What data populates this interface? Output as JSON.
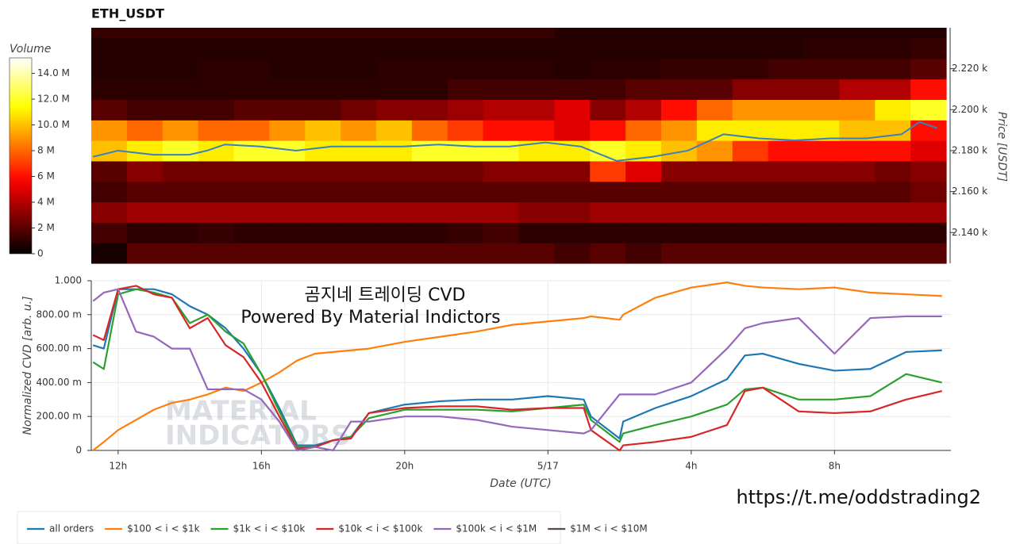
{
  "chart_data": [
    {
      "type": "heatmap",
      "title": "ETH_USDT",
      "colormap": "hot",
      "x": [
        11.75,
        12.75,
        13.75,
        14.75,
        15.75,
        16.75,
        17.75,
        18.75,
        19.75,
        20.75,
        21.75,
        22.75,
        23.75,
        24.75,
        25.75,
        26.75,
        27.75,
        28.75,
        29.75,
        30.75,
        31.75,
        32.75,
        33.75,
        34.75
      ],
      "y": [
        2130,
        2140,
        2150,
        2160,
        2170,
        2180,
        2190,
        2200,
        2210,
        2220,
        2230,
        2240
      ],
      "values": [
        [
          0.5,
          2,
          2,
          2,
          2,
          2,
          2,
          2,
          2,
          2,
          2,
          2,
          2,
          1.5,
          2,
          1.5,
          2,
          2,
          2,
          2,
          2,
          2,
          2,
          2
        ],
        [
          1.5,
          1,
          1,
          1.2,
          1,
          1,
          1,
          1,
          1,
          1,
          1.2,
          1.5,
          1,
          1,
          1,
          1,
          1,
          1,
          1,
          1,
          1,
          1,
          1,
          1
        ],
        [
          3,
          3.5,
          3.5,
          3.5,
          3.5,
          3.5,
          3.5,
          3.5,
          3.5,
          3.5,
          3.5,
          3.5,
          3,
          3,
          3.5,
          3.5,
          3.5,
          3.5,
          3.5,
          3.5,
          3.5,
          3.5,
          3.5,
          3.5
        ],
        [
          1.5,
          2,
          2,
          2,
          2,
          2,
          2,
          2,
          2,
          2,
          2,
          2,
          2,
          2,
          2,
          2,
          2,
          2,
          2,
          2,
          2,
          2,
          2,
          2.5
        ],
        [
          2,
          3,
          2.5,
          2.5,
          2.5,
          2.5,
          2.5,
          2.5,
          2.5,
          2.5,
          2.5,
          3,
          3,
          3,
          7,
          5,
          3,
          3,
          3,
          3,
          3,
          3,
          2.5,
          3
        ],
        [
          10,
          11,
          12,
          11,
          12,
          12,
          11,
          11,
          11,
          12,
          12,
          12,
          11,
          11,
          12,
          11,
          10,
          9,
          7,
          6,
          6,
          6,
          6,
          5
        ],
        [
          9,
          8,
          9,
          8,
          8,
          9,
          10,
          9,
          10,
          8,
          7,
          6,
          6,
          5,
          6,
          8,
          9,
          11,
          11,
          11,
          11,
          10,
          10,
          6
        ],
        [
          2,
          1.5,
          1.5,
          1.5,
          2,
          2,
          2,
          2.5,
          3,
          3,
          3.5,
          4,
          4,
          5,
          3,
          4,
          6,
          8,
          9,
          9,
          9,
          9,
          11,
          12
        ],
        [
          1,
          1,
          1,
          1,
          1,
          1,
          1,
          1,
          1,
          1,
          1.5,
          1.5,
          1.5,
          1.5,
          1.5,
          2,
          2,
          2,
          3,
          3,
          3,
          4,
          4,
          6
        ],
        [
          0.8,
          0.8,
          0.8,
          1,
          1,
          0.8,
          0.8,
          0.8,
          1,
          1,
          1,
          1,
          1,
          0.8,
          1,
          1,
          1.2,
          1.2,
          1.2,
          1.5,
          1.5,
          1.5,
          1.5,
          2
        ],
        [
          0.8,
          0.8,
          0.8,
          0.8,
          0.8,
          0.8,
          0.8,
          0.8,
          0.8,
          0.8,
          0.8,
          0.8,
          0.8,
          0.8,
          0.8,
          0.8,
          0.8,
          0.8,
          0.8,
          0.8,
          1,
          1,
          1,
          1.2
        ],
        [
          1.2,
          1.2,
          1.2,
          1.2,
          1.2,
          1.2,
          1.2,
          1.2,
          1.2,
          1.2,
          1.2,
          1.2,
          1.2,
          0.8,
          0.8,
          0.8,
          0.8,
          0.8,
          0.8,
          0.8,
          0.8,
          0.8,
          0.8,
          0.8
        ]
      ],
      "xlim": [
        11.25,
        35.25
      ],
      "ylim": [
        2125,
        2240
      ],
      "yticks": [
        {
          "value": 2140,
          "label": "2.140 k"
        },
        {
          "value": 2160,
          "label": "2.160 k"
        },
        {
          "value": 2180,
          "label": "2.180 k"
        },
        {
          "value": 2200,
          "label": "2.200 k"
        },
        {
          "value": 2220,
          "label": "2.220 k"
        }
      ],
      "ylabel": "Price [USDT]",
      "colorbar_label": "Volume",
      "clim": [
        0,
        15.2
      ],
      "cticks": [
        0,
        {
          "value": 2,
          "label": "2 M"
        },
        {
          "value": 4,
          "label": "4 M"
        },
        {
          "value": 6,
          "label": "6 M"
        },
        {
          "value": 8,
          "label": "8 M"
        },
        {
          "value": 10,
          "label": "10.0 M"
        },
        {
          "value": 12,
          "label": "12.0 M"
        },
        {
          "value": 14,
          "label": "14.0 M"
        }
      ],
      "price_line": {
        "color": "#3a80c0",
        "x": [
          11.3,
          12,
          13,
          14,
          14.5,
          15,
          16,
          17,
          18,
          19,
          20,
          21,
          22,
          23,
          24,
          25,
          26,
          27,
          28,
          29,
          30,
          31,
          32,
          33,
          34,
          34.5,
          35
        ],
        "values": [
          2177,
          2180,
          2178,
          2178,
          2180,
          2183,
          2182,
          2180,
          2182,
          2182,
          2182,
          2183,
          2182,
          2182,
          2184,
          2182,
          2175,
          2177,
          2180,
          2188,
          2186,
          2185,
          2186,
          2186,
          2188,
          2194,
          2191
        ]
      }
    },
    {
      "type": "line",
      "ylabel": "Normalized CVD [arb. u.]",
      "xlabel": "Date (UTC)",
      "grid": true,
      "legend": "bottom-left",
      "x": [
        11.3,
        11.6,
        12,
        12.5,
        13,
        13.5,
        14,
        14.5,
        15,
        15.5,
        16,
        16.5,
        17,
        17.5,
        18,
        18.5,
        19,
        20,
        21,
        22,
        23,
        24,
        25,
        25.2,
        26,
        26.1,
        27,
        28,
        29,
        29.5,
        30,
        31,
        32,
        33,
        34,
        35
      ],
      "series": [
        {
          "name": "all orders",
          "color": "#1f77b4",
          "values": [
            0.62,
            0.6,
            0.95,
            0.95,
            0.95,
            0.92,
            0.85,
            0.8,
            0.72,
            0.6,
            0.45,
            0.25,
            0.03,
            0.03,
            0.06,
            0.08,
            0.22,
            0.27,
            0.29,
            0.3,
            0.3,
            0.32,
            0.3,
            0.2,
            0.07,
            0.17,
            0.25,
            0.32,
            0.42,
            0.56,
            0.57,
            0.51,
            0.47,
            0.48,
            0.58,
            0.59
          ]
        },
        {
          "name": "$100 < i < $1k",
          "color": "#ff7f0e",
          "values": [
            0,
            0.05,
            0.12,
            0.18,
            0.24,
            0.28,
            0.3,
            0.33,
            0.37,
            0.35,
            0.4,
            0.46,
            0.53,
            0.57,
            0.58,
            0.59,
            0.6,
            0.64,
            0.67,
            0.7,
            0.74,
            0.76,
            0.78,
            0.79,
            0.77,
            0.8,
            0.9,
            0.96,
            0.99,
            0.97,
            0.96,
            0.95,
            0.96,
            0.93,
            0.92,
            0.91
          ]
        },
        {
          "name": "$1k < i < $10k",
          "color": "#2ca02c",
          "values": [
            0.52,
            0.48,
            0.92,
            0.95,
            0.93,
            0.9,
            0.75,
            0.8,
            0.7,
            0.63,
            0.45,
            0.23,
            0.02,
            0.02,
            0.06,
            0.08,
            0.19,
            0.24,
            0.24,
            0.24,
            0.23,
            0.25,
            0.27,
            0.18,
            0.05,
            0.1,
            0.15,
            0.2,
            0.27,
            0.36,
            0.37,
            0.3,
            0.3,
            0.32,
            0.45,
            0.4
          ]
        },
        {
          "name": "$10k < i < $100k",
          "color": "#d62728",
          "values": [
            0.68,
            0.65,
            0.95,
            0.97,
            0.92,
            0.9,
            0.72,
            0.78,
            0.62,
            0.55,
            0.4,
            0.2,
            0.01,
            0.02,
            0.06,
            0.07,
            0.22,
            0.25,
            0.26,
            0.26,
            0.24,
            0.25,
            0.25,
            0.12,
            0,
            0.03,
            0.05,
            0.08,
            0.15,
            0.35,
            0.37,
            0.23,
            0.22,
            0.23,
            0.3,
            0.35
          ]
        },
        {
          "name": "$100k < i < $1M",
          "color": "#9467bd",
          "values": [
            0.88,
            0.93,
            0.95,
            0.7,
            0.67,
            0.6,
            0.6,
            0.36,
            0.36,
            0.36,
            0.3,
            0.17,
            0,
            0.02,
            0,
            0.17,
            0.17,
            0.2,
            0.2,
            0.18,
            0.14,
            0.12,
            0.1,
            0.12,
            0.33,
            0.33,
            0.33,
            0.4,
            0.6,
            0.72,
            0.75,
            0.78,
            0.57,
            0.78,
            0.79,
            0.79
          ]
        },
        {
          "name": "$1M < i < $10M",
          "color": "#5a4a42",
          "values": [
            null,
            null,
            null,
            null,
            null,
            null,
            null,
            null,
            null,
            null,
            null,
            null,
            null,
            null,
            null,
            null,
            null,
            null,
            null,
            null,
            null,
            null,
            null,
            null,
            null,
            null,
            null,
            null,
            null,
            null,
            null,
            null,
            null,
            null,
            null,
            null
          ]
        }
      ],
      "xlim": [
        11.25,
        35.25
      ],
      "ylim": [
        0,
        1
      ],
      "xticks": [
        {
          "value": 12,
          "label": "12h"
        },
        {
          "value": 16,
          "label": "16h"
        },
        {
          "value": 20,
          "label": "20h"
        },
        {
          "value": 24,
          "label": "5/17"
        },
        {
          "value": 28,
          "label": "4h"
        },
        {
          "value": 32,
          "label": "8h"
        }
      ],
      "yticks": [
        0,
        {
          "value": 0.2,
          "label": "200.00 m"
        },
        {
          "value": 0.4,
          "label": "400.00 m"
        },
        {
          "value": 0.6,
          "label": "600.00 m"
        },
        {
          "value": 0.8,
          "label": "800.00 m"
        },
        {
          "value": 1,
          "label": "1.000"
        }
      ],
      "annotations": [
        "곰지네 트레이딩 CVD",
        "Powered By Material Indictors",
        "MATERIAL",
        "INDICATORS"
      ]
    }
  ],
  "footer_link": "https://t.me/oddstrading2"
}
